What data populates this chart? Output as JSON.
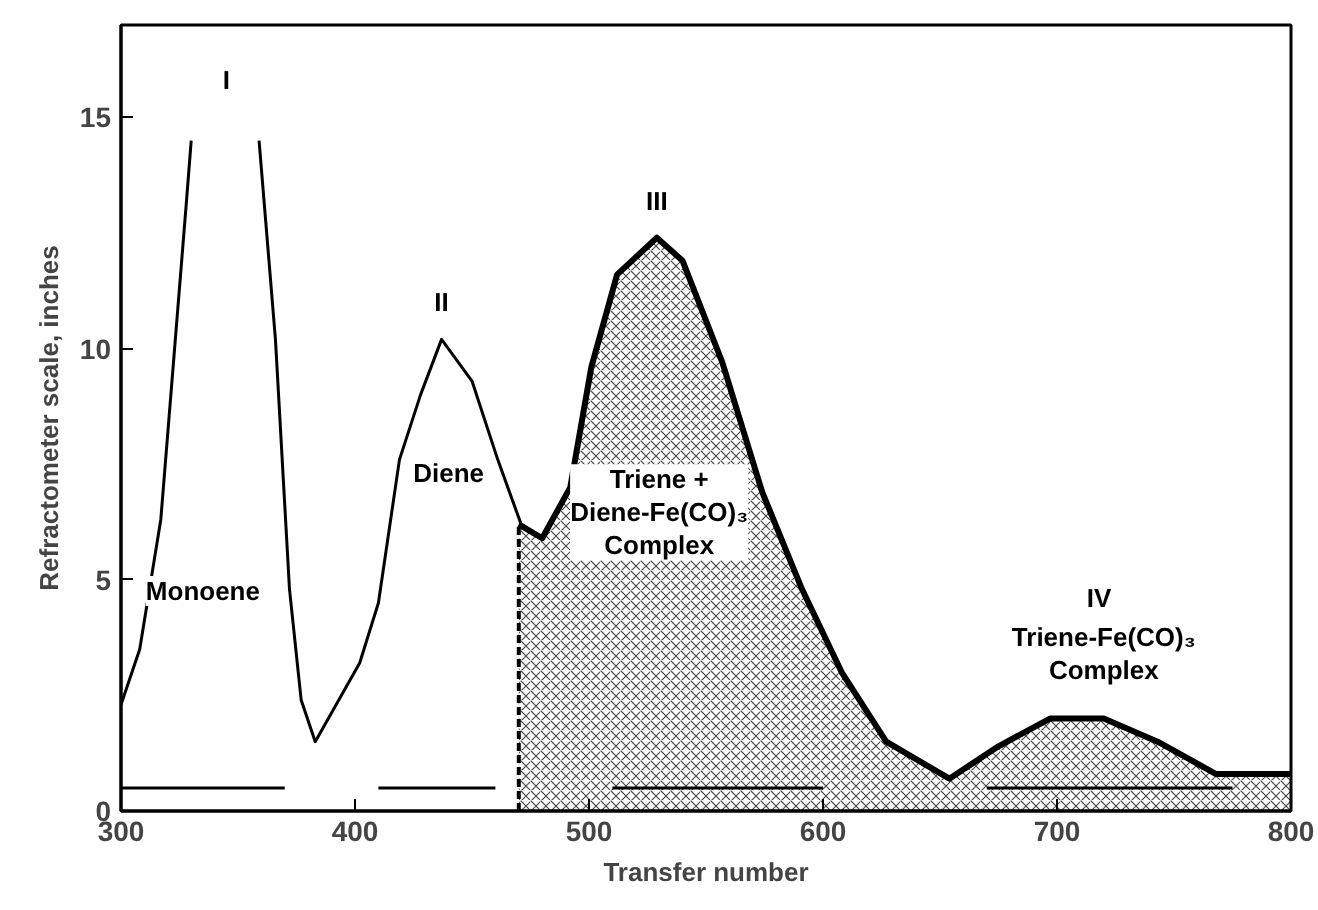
{
  "chart_data": {
    "type": "line",
    "xlabel": "Transfer number",
    "ylabel": "Refractometer scale, inches",
    "xlim": [
      300,
      800
    ],
    "ylim": [
      0,
      17
    ],
    "xticks": [
      300,
      400,
      500,
      600,
      700,
      800
    ],
    "yticks": [
      0,
      5,
      10,
      15
    ],
    "grid": false,
    "series": [
      {
        "color": "#000000",
        "x": [
          300,
          308,
          317,
          328,
          330,
          336,
          355,
          359,
          366,
          372,
          377,
          383,
          402,
          410,
          419,
          428,
          437,
          450,
          461,
          471,
          480
        ],
        "values": [
          2.3,
          3.5,
          6.3,
          13.2,
          14.5,
          null,
          null,
          14.5,
          10.2,
          4.8,
          2.4,
          1.5,
          3.2,
          4.5,
          7.6,
          9.0,
          10.2,
          9.3,
          7.6,
          6.2,
          5.9
        ]
      },
      {
        "type": "area",
        "color": "#000000",
        "x": [
          470,
          480,
          492,
          501,
          512,
          529,
          540,
          557,
          574,
          591,
          608,
          627,
          654,
          675,
          697,
          720,
          743,
          768,
          800
        ],
        "values": [
          6.2,
          5.9,
          7.0,
          9.6,
          11.6,
          12.4,
          11.9,
          9.7,
          6.9,
          4.8,
          3.0,
          1.5,
          0.7,
          1.4,
          2.0,
          2.0,
          1.5,
          0.8,
          0.8
        ]
      },
      {
        "type": "line",
        "color": "#000000",
        "line_style": "dashed",
        "x": [
          470,
          470
        ],
        "values": [
          0,
          6.2
        ]
      },
      {
        "type": "line",
        "color": "#000000",
        "x": [
          300,
          370
        ],
        "values": [
          0.5,
          0.5
        ]
      },
      {
        "type": "line",
        "color": "#000000",
        "x": [
          410,
          460
        ],
        "values": [
          0.5,
          0.5
        ]
      },
      {
        "type": "line",
        "color": "#000000",
        "x": [
          510,
          600
        ],
        "values": [
          0.5,
          0.5
        ]
      },
      {
        "type": "line",
        "color": "#000000",
        "x": [
          670,
          775
        ],
        "values": [
          0.5,
          0.5
        ]
      }
    ],
    "annotations": [
      "I",
      {
        "text": "II",
        "x": 437,
        "y": 11
      },
      {
        "text": "III",
        "x": 529,
        "y": 13.2
      },
      {
        "text": "IV",
        "x": 718,
        "y": 4.6
      },
      "Monoene",
      "Diene",
      "Triene +\nDiene-Fe(CO)₃\nComplex",
      "Triene-Fe(CO)₃\nComplex"
    ]
  }
}
